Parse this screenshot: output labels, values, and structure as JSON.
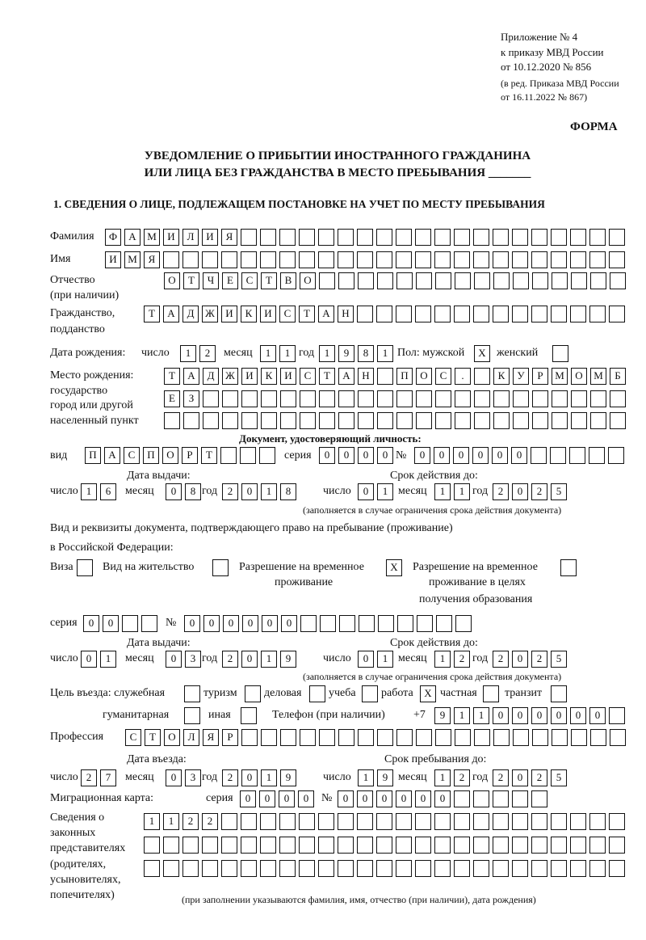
{
  "header": {
    "line1": "Приложение № 4",
    "line2": "к приказу МВД России",
    "line3": "от 10.12.2020 № 856",
    "line4": "(в ред. Приказа МВД России",
    "line5": "от 16.11.2022 № 867)",
    "form_label": "ФОРМА",
    "title1": "УВЕДОМЛЕНИЕ О ПРИБЫТИИ ИНОСТРАННОГО ГРАЖДАНИНА",
    "title2": "ИЛИ ЛИЦА БЕЗ ГРАЖДАНСТВА В МЕСТО ПРЕБЫВАНИЯ _______",
    "section1": "1. СВЕДЕНИЯ О ЛИЦЕ, ПОДЛЕЖАЩЕМ ПОСТАНОВКЕ НА УЧЕТ ПО МЕСТУ ПРЕБЫВАНИЯ"
  },
  "labels": {
    "surname": "Фамилия",
    "name": "Имя",
    "patronymic": "Отчество",
    "patronymic_note": "(при наличии)",
    "citizenship": "Гражданство,",
    "citizenship2": "подданство",
    "birth_date": "Дата рождения:",
    "day": "число",
    "month": "месяц",
    "year": "год",
    "sex_male": "Пол: мужской",
    "sex_female": "женский",
    "birthplace1": "Место рождения:",
    "birthplace2": "государство",
    "birthplace3": "город или другой",
    "birthplace4": "населенный пункт",
    "id_doc": "Документ, удостоверяющий личность:",
    "kind": "вид",
    "series": "серия",
    "number": "№",
    "issue_date": "Дата выдачи:",
    "valid_until": "Срок действия до:",
    "validity_note": "(заполняется в случае ограничения срока действия документа)",
    "stay_doc1": "Вид и реквизиты документа, подтверждающего право на пребывание (проживание)",
    "stay_doc2": "в Российской Федерации:",
    "visa": "Виза",
    "residence": "Вид на жительство",
    "temp_res1": "Разрешение на временное",
    "temp_res2": "проживание",
    "temp_edu1": "Разрешение на временное",
    "temp_edu2": "проживание в целях",
    "temp_edu3": "получения образования",
    "purpose": "Цель въезда: служебная",
    "tourism": "туризм",
    "business": "деловая",
    "study": "учеба",
    "work": "работа",
    "private": "частная",
    "transit": "транзит",
    "humanitarian": "гуманитарная",
    "other": "иная",
    "phone": "Телефон (при наличии)",
    "phone_prefix": "+7",
    "profession": "Профессия",
    "entry_date": "Дата въезда:",
    "stay_until": "Срок пребывания до:",
    "migration_card": "Миграционная карта:",
    "reps1": "Сведения о",
    "reps2": "законных",
    "reps3": "представителях",
    "reps4": "(родителях,",
    "reps5": "усыновителях,",
    "reps6": "попечителях)",
    "reps_note": "(при заполнении указываются фамилия, имя, отчество (при наличии), дата рождения)"
  },
  "person": {
    "surname": "ФАМИЛИЯ",
    "name": "ИМЯ",
    "patronymic": "ОТЧЕСТВО",
    "citizenship": "ТАДЖИКИСТАН",
    "birth_day": "12",
    "birth_month": "11",
    "birth_year": "1981",
    "sex_male": "X",
    "sex_female": "",
    "birthplace_line1": "ТАДЖИКИСТАН ПОС. КУРМОМБ",
    "birthplace_line2": "ЕЗ",
    "birthplace_line3": ""
  },
  "identity_doc": {
    "kind": "ПАСПОРТ",
    "series": "0000",
    "number": "000000",
    "issue_day": "16",
    "issue_month": "08",
    "issue_year": "2018",
    "valid_day": "01",
    "valid_month": "11",
    "valid_year": "2025"
  },
  "stay_doc": {
    "visa": "",
    "residence_permit": "",
    "temporary_residence": "X",
    "temporary_residence_education": "",
    "series": "00",
    "number": "000000",
    "issue_day": "01",
    "issue_month": "03",
    "issue_year": "2019",
    "valid_day": "01",
    "valid_month": "12",
    "valid_year": "2025"
  },
  "purpose": {
    "official": "",
    "tourism": "",
    "business": "",
    "study": "",
    "work": "X",
    "private": "",
    "transit": "",
    "humanitarian": "",
    "other": ""
  },
  "phone": "911000000",
  "profession": "СТОЛЯР",
  "entry": {
    "entry_day": "27",
    "entry_month": "03",
    "entry_year": "2019",
    "until_day": "19",
    "until_month": "12",
    "until_year": "2025"
  },
  "migration_card": {
    "series": "0000",
    "number": "000000"
  },
  "representatives": {
    "line1": "1122",
    "line2": "",
    "line3": ""
  }
}
